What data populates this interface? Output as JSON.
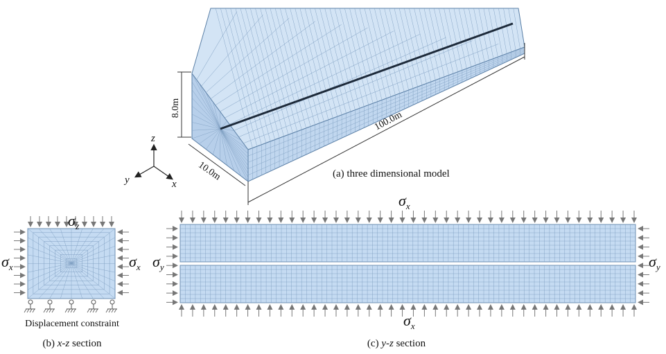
{
  "model3d": {
    "height_label": "8.0m",
    "length_label": "100.0m",
    "width_label": "10.0m",
    "caption": "(a) three dimensional model",
    "axes": {
      "x": "x",
      "y": "y",
      "z": "z"
    }
  },
  "xz_section": {
    "top_stress": "σ",
    "top_stress_sub": "z",
    "left_stress": "σ",
    "left_stress_sub": "x",
    "right_stress": "σ",
    "right_stress_sub": "x",
    "constraint_label": "Displacement constraint",
    "caption_prefix": "(b) ",
    "caption_italic": "x-z",
    "caption_suffix": " section"
  },
  "yz_section": {
    "top_stress": "σ",
    "top_stress_sub": "x",
    "bottom_stress": "σ",
    "bottom_stress_sub": "x",
    "left_stress": "σ",
    "left_stress_sub": "y",
    "right_stress": "σ",
    "right_stress_sub": "y",
    "caption_prefix": "(c) ",
    "caption_italic": "y-z",
    "caption_suffix": " section"
  },
  "colors": {
    "mesh_fill": "#c5dbf2",
    "mesh_line": "#6d8fb3",
    "crack": "#1d2a3a",
    "arrow": "#777777"
  }
}
